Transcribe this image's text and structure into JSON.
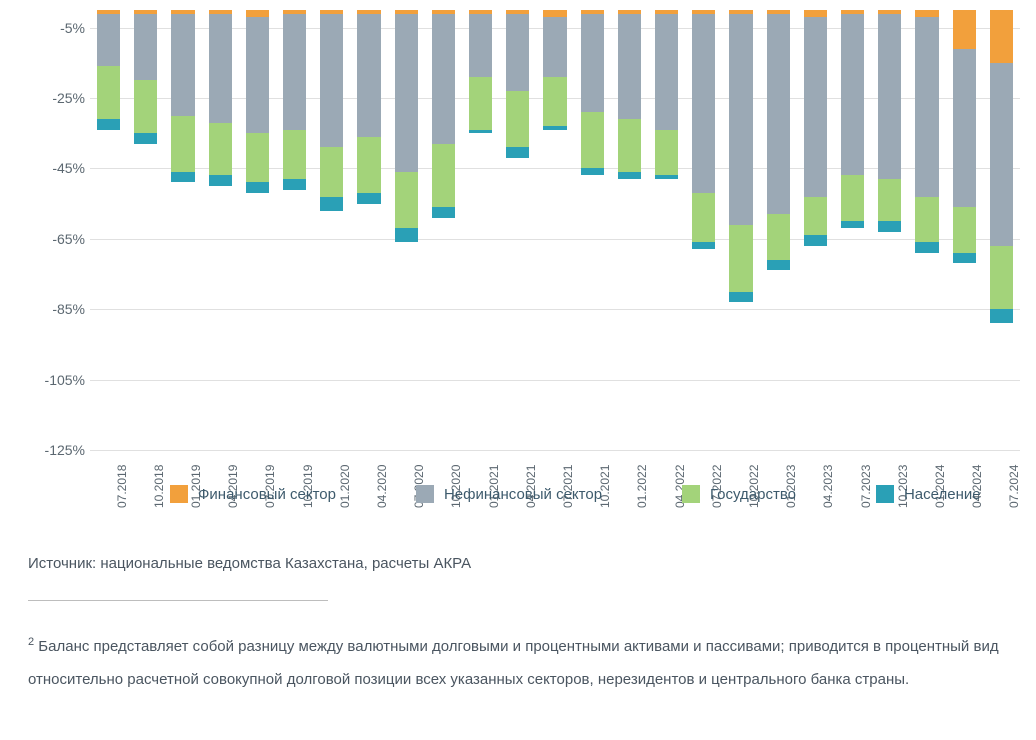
{
  "chart": {
    "type": "stacked-bar",
    "ymin": -125,
    "ymax": 0,
    "ytick_values": [
      -5,
      -25,
      -45,
      -65,
      -85,
      -105,
      -125
    ],
    "ytick_labels": [
      "-5%",
      "-25%",
      "-45%",
      "-65%",
      "-85%",
      "-105%",
      "-125%"
    ],
    "bar_width_ratio": 0.62,
    "categories": [
      "07.2018",
      "10.2018",
      "01.2019",
      "04.2019",
      "07.2019",
      "10.2019",
      "01.2020",
      "04.2020",
      "07.2020",
      "10.2020",
      "01.2021",
      "04.2021",
      "07.2021",
      "10.2021",
      "01.2022",
      "04.2022",
      "07.2022",
      "10.2022",
      "01.2023",
      "04.2023",
      "07.2023",
      "10.2023",
      "01.2024",
      "04.2024",
      "07.2024"
    ],
    "series": [
      {
        "key": "financial",
        "label": "Финансовый сектор",
        "color": "#f2a03c"
      },
      {
        "key": "nonfinancial",
        "label": "Нефинансовый сектор",
        "color": "#9ba9b5"
      },
      {
        "key": "government",
        "label": "Государство",
        "color": "#a3d37a"
      },
      {
        "key": "population",
        "label": "Население",
        "color": "#2aa0b6"
      }
    ],
    "data": [
      {
        "financial": -1,
        "nonfinancial": -15,
        "government": -15,
        "population": -3
      },
      {
        "financial": -1,
        "nonfinancial": -19,
        "government": -15,
        "population": -3
      },
      {
        "financial": -1,
        "nonfinancial": -29,
        "government": -16,
        "population": -3
      },
      {
        "financial": -1,
        "nonfinancial": -31,
        "government": -15,
        "population": -3
      },
      {
        "financial": -2,
        "nonfinancial": -33,
        "government": -14,
        "population": -3
      },
      {
        "financial": -1,
        "nonfinancial": -33,
        "government": -14,
        "population": -3
      },
      {
        "financial": -1,
        "nonfinancial": -38,
        "government": -14,
        "population": -4
      },
      {
        "financial": -1,
        "nonfinancial": -35,
        "government": -16,
        "population": -3
      },
      {
        "financial": -1,
        "nonfinancial": -45,
        "government": -16,
        "population": -4
      },
      {
        "financial": -1,
        "nonfinancial": -37,
        "government": -18,
        "population": -3
      },
      {
        "financial": -1,
        "nonfinancial": -18,
        "government": -15,
        "population": -1
      },
      {
        "financial": -1,
        "nonfinancial": -22,
        "government": -16,
        "population": -3
      },
      {
        "financial": -2,
        "nonfinancial": -17,
        "government": -14,
        "population": -1
      },
      {
        "financial": -1,
        "nonfinancial": -28,
        "government": -16,
        "population": -2
      },
      {
        "financial": -1,
        "nonfinancial": -30,
        "government": -15,
        "population": -2
      },
      {
        "financial": -1,
        "nonfinancial": -33,
        "government": -13,
        "population": -1
      },
      {
        "financial": -1,
        "nonfinancial": -51,
        "government": -14,
        "population": -2
      },
      {
        "financial": -1,
        "nonfinancial": -60,
        "government": -19,
        "population": -3
      },
      {
        "financial": -1,
        "nonfinancial": -57,
        "government": -13,
        "population": -3
      },
      {
        "financial": -2,
        "nonfinancial": -51,
        "government": -11,
        "population": -3
      },
      {
        "financial": -1,
        "nonfinancial": -46,
        "government": -13,
        "population": -2
      },
      {
        "financial": -1,
        "nonfinancial": -47,
        "government": -12,
        "population": -3
      },
      {
        "financial": -2,
        "nonfinancial": -51,
        "government": -13,
        "population": -3
      },
      {
        "financial": -11,
        "nonfinancial": -45,
        "government": -13,
        "population": -3
      },
      {
        "financial": -15,
        "nonfinancial": -52,
        "government": -18,
        "population": -4
      }
    ],
    "background_color": "#ffffff",
    "grid_color": "#e0e0e0",
    "axis_fontsize": 14,
    "xtick_fontsize": 12
  },
  "legend": {
    "items": [
      {
        "label": "Финансовый сектор",
        "color": "#f2a03c"
      },
      {
        "label": "Нефинансовый сектор",
        "color": "#9ba9b5"
      },
      {
        "label": "Государство",
        "color": "#a3d37a"
      },
      {
        "label": "Население",
        "color": "#2aa0b6"
      }
    ]
  },
  "source_text": "Источник: национальные ведомства Казахстана, расчеты АКРА",
  "footnote_sup": "2",
  "footnote_text": " Баланс представляет собой разницу между валютными долговыми и процентными активами и пассивами; приводится в процентный вид относительно расчетной совокупной долговой позиции всех указанных секторов, нерезидентов и центрального банка страны."
}
